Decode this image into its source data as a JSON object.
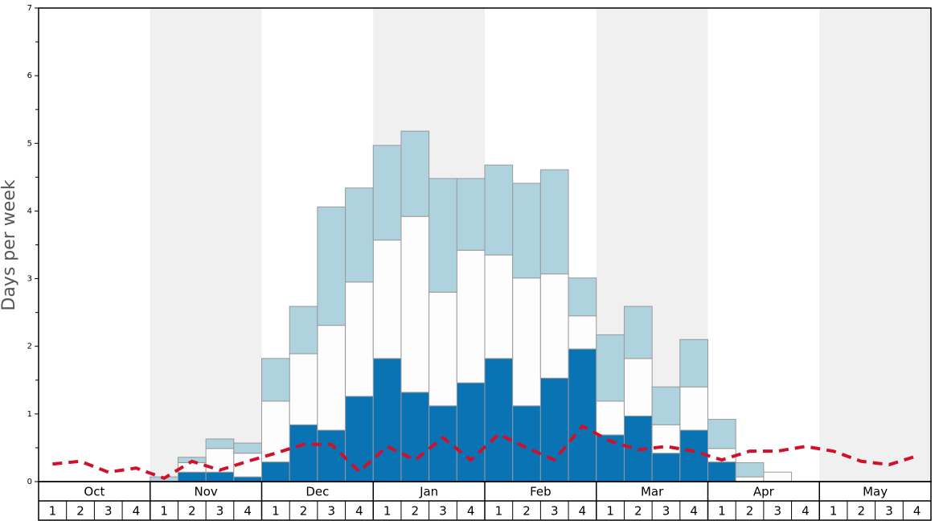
{
  "chart_data": {
    "type": "bar",
    "y_label": "Days per week",
    "months": [
      "Oct",
      "Nov",
      "Dec",
      "Jan",
      "Feb",
      "Mar",
      "Apr",
      "May"
    ],
    "categories": [
      "1",
      "2",
      "3",
      "4",
      "1",
      "2",
      "3",
      "4",
      "1",
      "2",
      "3",
      "4",
      "1",
      "2",
      "3",
      "4",
      "1",
      "2",
      "3",
      "4",
      "1",
      "2",
      "3",
      "4",
      "1",
      "2",
      "3",
      "4",
      "1",
      "2",
      "3",
      "4"
    ],
    "series": [
      {
        "color": "#0a73b4",
        "values": [
          0,
          0,
          0,
          0,
          0,
          0.14,
          0.14,
          0.07,
          0.29,
          0.84,
          0.76,
          1.26,
          1.82,
          1.32,
          1.12,
          1.46,
          1.82,
          1.12,
          1.53,
          1.96,
          0.69,
          0.97,
          0.42,
          0.76,
          0.29,
          0,
          0,
          0,
          0,
          0,
          0,
          0
        ]
      },
      {
        "color": "#fdfdfd",
        "values": [
          0,
          0,
          0,
          0,
          0,
          0.14,
          0.35,
          0.35,
          0.9,
          1.05,
          1.55,
          1.69,
          1.75,
          2.6,
          1.68,
          1.96,
          1.53,
          1.89,
          1.54,
          0.49,
          0.5,
          0.85,
          0.42,
          0.64,
          0.2,
          0.07,
          0.14,
          0,
          0,
          0,
          0,
          0
        ]
      },
      {
        "color": "#aed3df",
        "values": [
          0,
          0,
          0,
          0,
          0.07,
          0.08,
          0.14,
          0.15,
          0.63,
          0.7,
          1.75,
          1.39,
          1.4,
          1.26,
          1.68,
          1.06,
          1.33,
          1.4,
          1.54,
          0.56,
          0.98,
          0.77,
          0.56,
          0.7,
          0.43,
          0.21,
          0,
          0,
          0,
          0,
          0,
          0
        ]
      },
      {
        "type": "line",
        "color": "#d0112b",
        "values": [
          0.26,
          0.3,
          0.14,
          0.2,
          0.05,
          0.3,
          0.17,
          0.3,
          0.42,
          0.55,
          0.55,
          0.15,
          0.52,
          0.32,
          0.65,
          0.32,
          0.7,
          0.5,
          0.32,
          0.82,
          0.6,
          0.47,
          0.52,
          0.45,
          0.32,
          0.45,
          0.45,
          0.52,
          0.45,
          0.3,
          0.25,
          0.38
        ]
      }
    ],
    "ylim": [
      0,
      7
    ],
    "yticks": [
      0,
      1,
      2,
      3,
      4,
      5,
      6,
      7
    ],
    "minor_yticks": [
      0.5,
      1.5,
      2.5,
      3.5,
      4.5,
      5.5,
      6.5
    ]
  }
}
